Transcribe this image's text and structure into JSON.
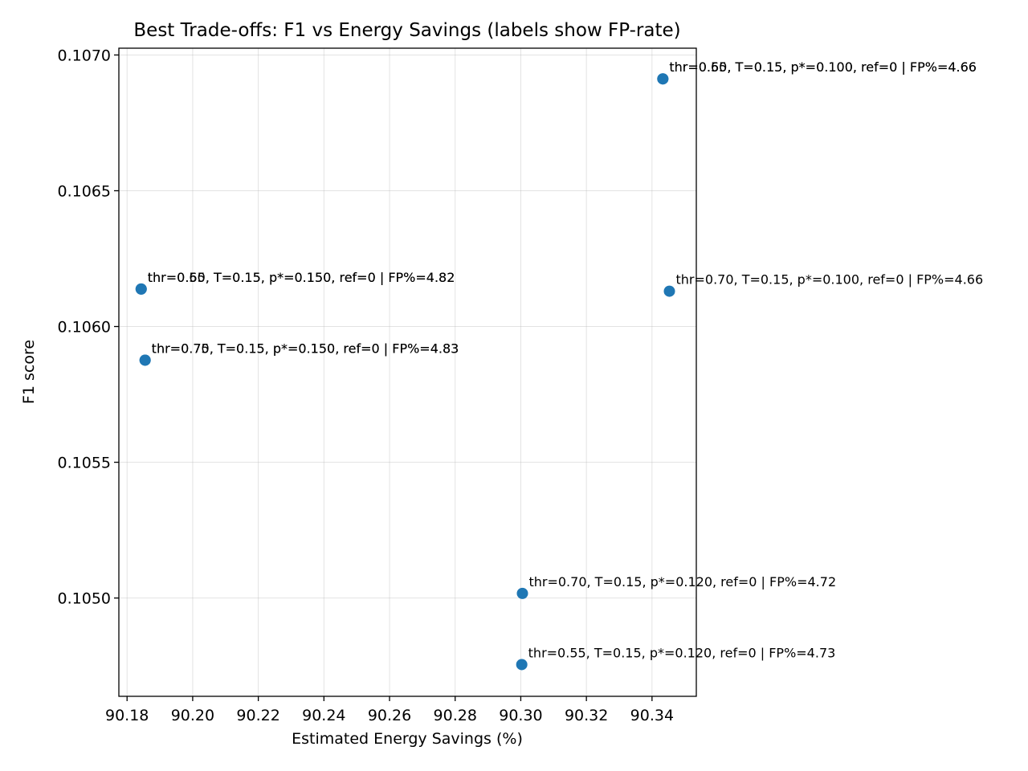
{
  "chart_data": {
    "type": "scatter",
    "title": "Best Trade-offs: F1 vs Energy Savings (labels show FP-rate)",
    "xlabel": "Estimated Energy Savings (%)",
    "ylabel": "F1 score",
    "xlim": [
      90.1775,
      90.3535
    ],
    "ylim": [
      0.104638,
      0.107025
    ],
    "xticks": [
      "90.18",
      "90.20",
      "90.22",
      "90.24",
      "90.26",
      "90.28",
      "90.30",
      "90.32",
      "90.34"
    ],
    "xtick_values": [
      90.18,
      90.2,
      90.22,
      90.24,
      90.26,
      90.28,
      90.3,
      90.32,
      90.34
    ],
    "yticks": [
      "0.1050",
      "0.1055",
      "0.1060",
      "0.1065",
      "0.1070"
    ],
    "ytick_values": [
      0.105,
      0.1055,
      0.106,
      0.1065,
      0.107
    ],
    "grid": true,
    "marker_color": "#1f77b4",
    "points": [
      {
        "x": 90.3433,
        "y": 0.106912,
        "label": "thr=0.55, T=0.15, p*=0.100, ref=0 | FP%=4.66"
      },
      {
        "x": 90.3433,
        "y": 0.106912,
        "label": "thr=0.60, T=0.15, p*=0.100, ref=0 | FP%=4.66"
      },
      {
        "x": 90.3453,
        "y": 0.10613,
        "label": "thr=0.70, T=0.15, p*=0.100, ref=0 | FP%=4.66"
      },
      {
        "x": 90.1843,
        "y": 0.106138,
        "label": "thr=0.55, T=0.15, p*=0.150, ref=0 | FP%=4.82"
      },
      {
        "x": 90.1843,
        "y": 0.106138,
        "label": "thr=0.60, T=0.15, p*=0.150, ref=0 | FP%=4.82"
      },
      {
        "x": 90.1855,
        "y": 0.105876,
        "label": "thr=0.70, T=0.15, p*=0.150, ref=0 | FP%=4.83"
      },
      {
        "x": 90.1855,
        "y": 0.105876,
        "label": "thr=0.75, T=0.15, p*=0.150, ref=0 | FP%=4.83"
      },
      {
        "x": 90.3005,
        "y": 0.105017,
        "label": "thr=0.70, T=0.15, p*=0.120, ref=0 | FP%=4.72"
      },
      {
        "x": 90.3003,
        "y": 0.104755,
        "label": "thr=0.55, T=0.15, p*=0.120, ref=0 | FP%=4.73"
      }
    ]
  }
}
